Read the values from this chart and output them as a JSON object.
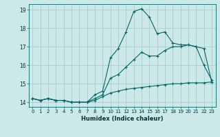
{
  "xlabel": "Humidex (Indice chaleur)",
  "xlim": [
    -0.5,
    23.5
  ],
  "ylim": [
    13.75,
    19.3
  ],
  "yticks": [
    14,
    15,
    16,
    17,
    18,
    19
  ],
  "xticks": [
    0,
    1,
    2,
    3,
    4,
    5,
    6,
    7,
    8,
    9,
    10,
    11,
    12,
    13,
    14,
    15,
    16,
    17,
    18,
    19,
    20,
    21,
    22,
    23
  ],
  "bg_color": "#cce8e8",
  "grid_color": "#aacccc",
  "line_color": "#006666",
  "line1_y": [
    14.2,
    14.1,
    14.2,
    14.1,
    14.1,
    14.0,
    14.0,
    14.0,
    14.4,
    14.6,
    16.4,
    16.9,
    17.8,
    18.9,
    19.05,
    18.6,
    17.7,
    17.8,
    17.2,
    17.1,
    17.1,
    17.0,
    16.0,
    15.2
  ],
  "line2_y": [
    14.2,
    14.1,
    14.2,
    14.1,
    14.1,
    14.0,
    14.0,
    14.0,
    14.2,
    14.4,
    15.3,
    15.5,
    15.9,
    16.3,
    16.7,
    16.5,
    16.5,
    16.8,
    17.0,
    17.0,
    17.1,
    17.0,
    16.9,
    15.1
  ],
  "line3_y": [
    14.2,
    14.1,
    14.2,
    14.1,
    14.1,
    14.0,
    14.0,
    14.0,
    14.1,
    14.3,
    14.5,
    14.6,
    14.7,
    14.75,
    14.8,
    14.85,
    14.9,
    14.95,
    15.0,
    15.0,
    15.05,
    15.05,
    15.05,
    15.1
  ]
}
